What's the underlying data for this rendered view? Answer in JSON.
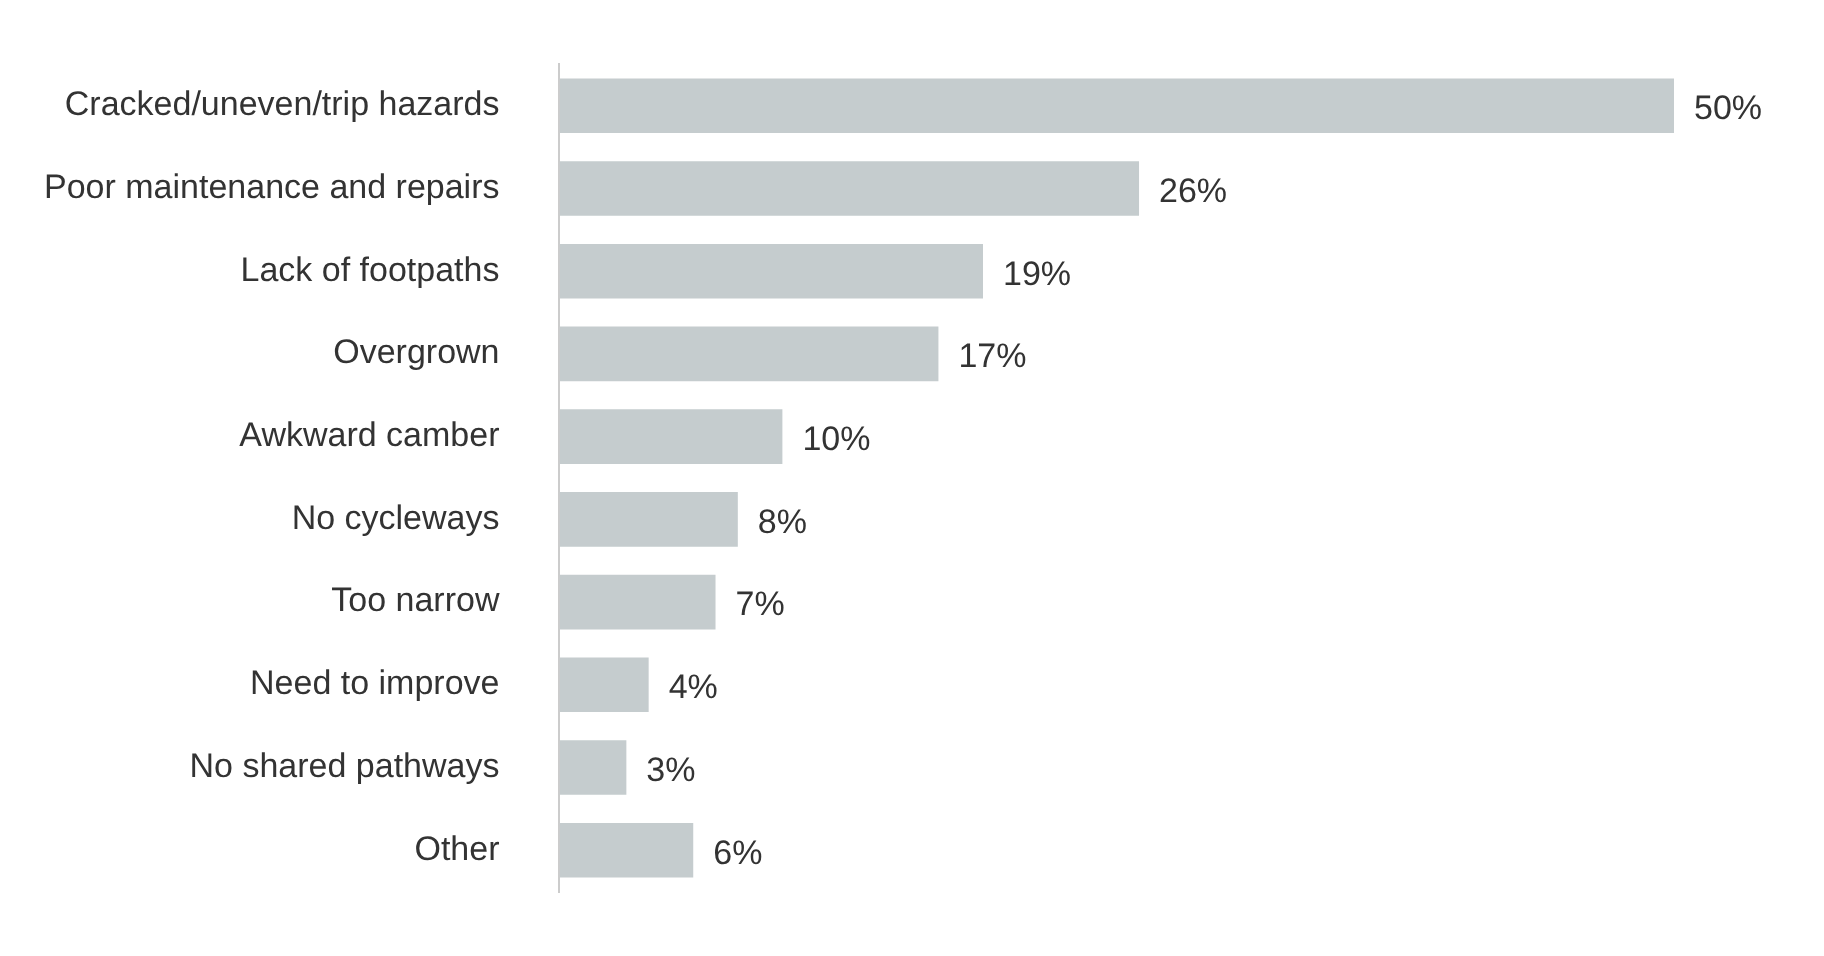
{
  "chart_data": {
    "type": "bar",
    "orientation": "horizontal",
    "categories": [
      "Cracked/uneven/trip hazards",
      "Poor maintenance and repairs",
      "Lack of footpaths",
      "Overgrown",
      "Awkward camber",
      "No cycleways",
      "Too narrow",
      "Need to improve",
      "No shared pathways",
      "Other"
    ],
    "values": [
      50,
      26,
      19,
      17,
      10,
      8,
      7,
      4,
      3,
      6
    ],
    "value_labels": [
      "50%",
      "26%",
      "19%",
      "17%",
      "10%",
      "8%",
      "7%",
      "4%",
      "3%",
      "6%"
    ],
    "color": "#c5ccce",
    "legend": false
  }
}
